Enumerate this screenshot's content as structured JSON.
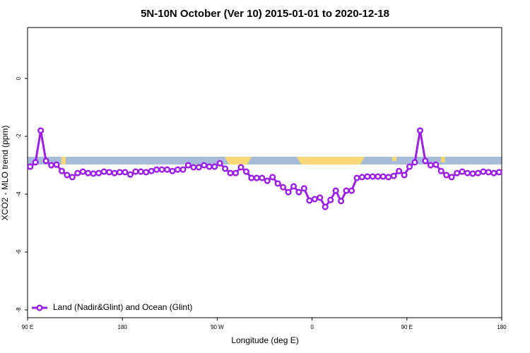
{
  "chart_data": {
    "type": "line",
    "title": "5N-10N October (Ver 10)   2015-01-01 to 2020-12-18",
    "x_label": "Longitude (deg E)",
    "y_label": "XCO2 - MLO trend (ppm)",
    "xlim": [
      90,
      540
    ],
    "xticks": [
      {
        "value": 90,
        "label": "90 E"
      },
      180,
      {
        "value": 270,
        "label": "90 W"
      },
      {
        "value": 360,
        "label": "0"
      },
      {
        "value": 450,
        "label": "90 E"
      },
      {
        "value": 540,
        "label": "180"
      }
    ],
    "ylim": [
      -8.27,
      1.76
    ],
    "yticks": [
      0,
      -2,
      -4,
      -6,
      -8
    ],
    "legend_position": "bottom-left",
    "x": [
      92.5,
      97.5,
      102.5,
      107.5,
      112.5,
      117.5,
      122.5,
      127.5,
      132.5,
      137.5,
      142.5,
      147.5,
      152.5,
      157.5,
      162.5,
      167.5,
      172.5,
      177.5,
      182.5,
      187.5,
      192.5,
      197.5,
      202.5,
      207.5,
      212.5,
      217.5,
      222.5,
      227.5,
      232.5,
      237.5,
      242.5,
      247.5,
      252.5,
      257.5,
      262.5,
      267.5,
      272.5,
      277.5,
      282.5,
      287.5,
      292.5,
      297.5,
      302.5,
      307.5,
      312.5,
      317.5,
      322.5,
      327.5,
      332.5,
      337.5,
      342.5,
      347.5,
      352.5,
      357.5,
      362.5,
      367.5,
      372.5,
      377.5,
      382.5,
      387.5,
      392.5,
      397.5,
      402.5,
      407.5,
      412.5,
      417.5,
      422.5,
      427.5,
      432.5,
      437.5,
      442.5,
      447.5,
      452.5,
      457.5,
      462.5,
      467.5,
      472.5,
      477.5,
      482.5,
      487.5,
      492.5,
      497.5,
      502.5,
      507.5,
      512.5,
      517.5,
      522.5,
      527.5,
      532.5,
      537.5
    ],
    "series": [
      {
        "name": "Land (Nadir&Glint) and Ocean (Glint)",
        "color": "#9b1fe8",
        "values": [
          -3.05,
          -2.9,
          -1.8,
          -2.85,
          -3.0,
          -2.98,
          -3.2,
          -3.34,
          -3.41,
          -3.27,
          -3.22,
          -3.27,
          -3.29,
          -3.27,
          -3.22,
          -3.24,
          -3.27,
          -3.24,
          -3.24,
          -3.32,
          -3.22,
          -3.22,
          -3.24,
          -3.2,
          -3.15,
          -3.15,
          -3.15,
          -3.2,
          -3.15,
          -3.15,
          -3.0,
          -3.07,
          -3.07,
          -3.0,
          -3.05,
          -3.05,
          -2.93,
          -3.12,
          -3.27,
          -3.27,
          -3.07,
          -3.22,
          -3.44,
          -3.44,
          -3.44,
          -3.54,
          -3.41,
          -3.63,
          -3.76,
          -3.93,
          -3.73,
          -3.93,
          -3.8,
          -4.22,
          -4.17,
          -4.12,
          -4.44,
          -4.2,
          -3.88,
          -4.24,
          -3.88,
          -3.88,
          -3.44,
          -3.41,
          -3.39,
          -3.39,
          -3.39,
          -3.39,
          -3.41,
          -3.37,
          -3.2,
          -3.34,
          -3.05,
          -2.9,
          -1.8,
          -2.85,
          -3.0,
          -2.98,
          -3.2,
          -3.34,
          -3.41,
          -3.27,
          -3.22,
          -3.27,
          -3.29,
          -3.27,
          -3.22,
          -3.24,
          -3.27,
          -3.24
        ]
      }
    ]
  }
}
